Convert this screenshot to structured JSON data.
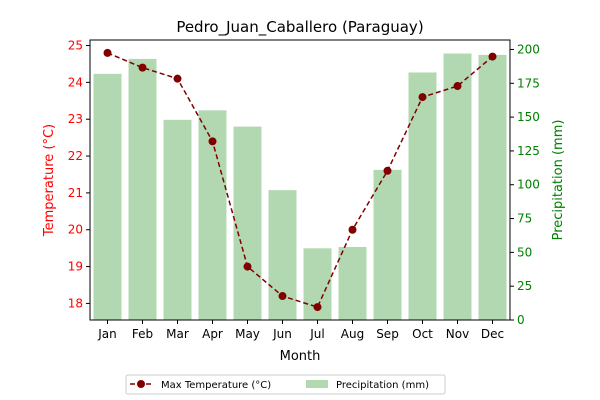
{
  "chart_data": {
    "type": "bar+line",
    "title": "Pedro_Juan_Caballero (Paraguay)",
    "xlabel": "Month",
    "categories": [
      "Jan",
      "Feb",
      "Mar",
      "Apr",
      "May",
      "Jun",
      "Jul",
      "Aug",
      "Sep",
      "Oct",
      "Nov",
      "Dec"
    ],
    "series": [
      {
        "name": "Max Temperature (°C)",
        "type": "line",
        "axis": "left",
        "color": "#800000",
        "values": [
          24.8,
          24.4,
          24.1,
          22.4,
          19.0,
          18.2,
          17.9,
          20.0,
          21.6,
          23.6,
          23.9,
          24.7
        ]
      },
      {
        "name": "Precipitation (mm)",
        "type": "bar",
        "axis": "right",
        "color": "#b2d8b2",
        "values": [
          182,
          193,
          148,
          155,
          143,
          96,
          53,
          54,
          111,
          183,
          197,
          196
        ]
      }
    ],
    "left_axis": {
      "label": "Temperature (°C)",
      "color": "#ff0000",
      "ylim": [
        17.55,
        25.15
      ],
      "ticks": [
        18,
        19,
        20,
        21,
        22,
        23,
        24,
        25
      ]
    },
    "right_axis": {
      "label": "Precipitation (mm)",
      "color": "#008000",
      "ylim": [
        0,
        207
      ],
      "ticks": [
        0,
        25,
        50,
        75,
        100,
        125,
        150,
        175,
        200
      ]
    },
    "grid": false,
    "legend_position": "bottom-center"
  }
}
